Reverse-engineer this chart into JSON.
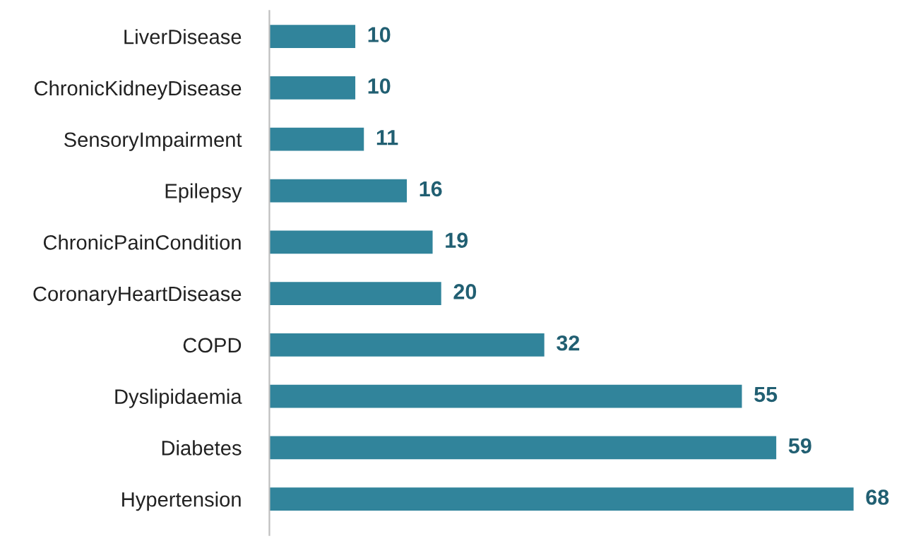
{
  "chart_data": {
    "type": "bar",
    "orientation": "horizontal",
    "categories": [
      "LiverDisease",
      "ChronicKidneyDisease",
      "SensoryImpairment",
      "Epilepsy",
      "ChronicPainCondition",
      "CoronaryHeartDisease",
      "COPD",
      "Dyslipidaemia",
      "Diabetes",
      "Hypertension"
    ],
    "values": [
      10,
      10,
      11,
      16,
      19,
      20,
      32,
      55,
      59,
      68
    ],
    "color": "#31849b",
    "data_labels": true,
    "tick_labels": "y",
    "grid": false,
    "legend": false
  }
}
